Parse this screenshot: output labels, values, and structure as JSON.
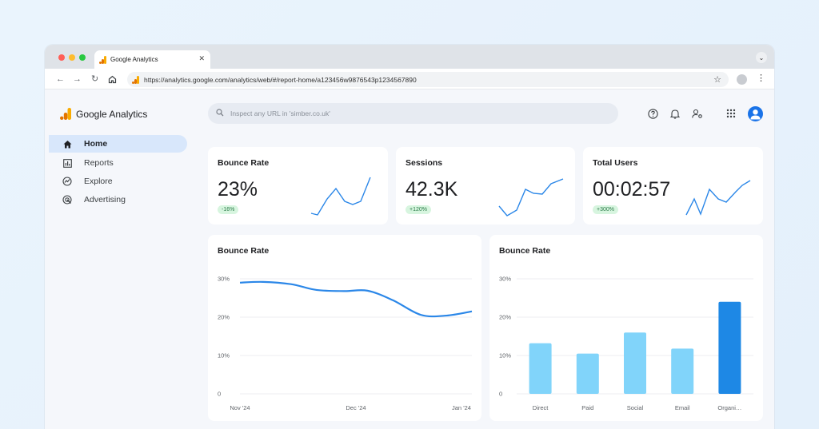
{
  "browser": {
    "tab_title": "Google Analytics",
    "tab_close": "✕",
    "url": "https://analytics.google.com/analytics/web/#/report-home/a123456w9876543p1234567890"
  },
  "app": {
    "brand": "Google Analytics",
    "nav": [
      {
        "label": "Home",
        "icon": "home-icon",
        "active": true
      },
      {
        "label": "Reports",
        "icon": "reports-icon"
      },
      {
        "label": "Explore",
        "icon": "explore-icon"
      },
      {
        "label": "Advertising",
        "icon": "advertising-icon"
      }
    ],
    "search_placeholder": "Inspect any URL in 'simber.co.uk'"
  },
  "metrics": [
    {
      "title": "Bounce Rate",
      "value": "23%",
      "change": "-16%"
    },
    {
      "title": "Sessions",
      "value": "42.3K",
      "change": "+120%"
    },
    {
      "title": "Total Users",
      "value": "00:02:57",
      "change": "+300%"
    }
  ],
  "colors": {
    "accent": "#1a73e8",
    "line": "#2b87e8",
    "bar_light": "#81d4fa",
    "bar_dark": "#1e88e5",
    "badge_bg": "#d7f5df",
    "badge_text": "#2e7d4b"
  },
  "chart_data": [
    {
      "type": "line",
      "title": "Bounce Rate",
      "x": [
        "Nov '24",
        "Dec '24",
        "Jan '24"
      ],
      "series": [
        {
          "points": [
            [
              0,
              29
            ],
            [
              0.1,
              29.2
            ],
            [
              0.22,
              28.6
            ],
            [
              0.33,
              27.1
            ],
            [
              0.45,
              26.8
            ],
            [
              0.55,
              26.9
            ],
            [
              0.66,
              24.4
            ],
            [
              0.78,
              20.6
            ],
            [
              0.89,
              20.4
            ],
            [
              1,
              21.5
            ]
          ]
        }
      ],
      "yticks": [
        "30%",
        "20%",
        "10%",
        "0"
      ],
      "ylim": [
        0,
        30
      ],
      "grid": true
    },
    {
      "type": "bar",
      "title": "Bounce Rate",
      "categories": [
        "Direct",
        "Paid",
        "Social",
        "Email",
        "Organi…"
      ],
      "values": [
        13.2,
        10.5,
        16,
        11.8,
        24
      ],
      "highlight": 4,
      "yticks": [
        "30%",
        "20%",
        "10%",
        "0"
      ],
      "ylim": [
        0,
        30
      ],
      "grid": true
    }
  ]
}
